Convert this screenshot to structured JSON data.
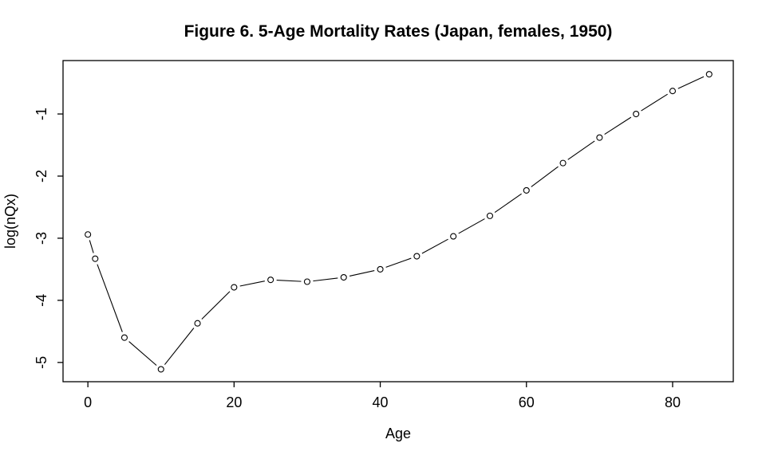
{
  "figure": {
    "title": "Figure 6. 5-Age Mortality Rates (Japan, females, 1950)",
    "xlabel": "Age",
    "ylabel": "log(nQx)"
  },
  "chart_data": {
    "type": "line",
    "title": "Figure 6. 5-Age Mortality Rates (Japan, females, 1950)",
    "xlabel": "Age",
    "ylabel": "log(nQx)",
    "marker": "open-circle",
    "line_style": "segments-with-gaps (R type='b')",
    "grid": false,
    "legend": null,
    "background_color": "#ffffff",
    "stroke_color": "#000000",
    "x": [
      0,
      1,
      5,
      10,
      15,
      20,
      25,
      30,
      35,
      40,
      45,
      50,
      55,
      60,
      65,
      70,
      75,
      80,
      85
    ],
    "y": [
      -2.94,
      -3.33,
      -4.6,
      -5.11,
      -4.37,
      -3.79,
      -3.67,
      -3.7,
      -3.63,
      -3.5,
      -3.29,
      -2.97,
      -2.64,
      -2.23,
      -1.79,
      -1.38,
      -1.0,
      -0.63,
      -0.36
    ],
    "xticks": [
      0,
      20,
      40,
      60,
      80
    ],
    "xtick_labels": [
      "0",
      "20",
      "40",
      "60",
      "80"
    ],
    "yticks": [
      -1,
      -2,
      -3,
      -4,
      -5
    ],
    "ytick_labels": [
      "-1",
      "-2",
      "-3",
      "-4",
      "-5"
    ],
    "xlim": [
      -3.4,
      88.3
    ],
    "ylim": [
      -5.31,
      -0.14
    ]
  }
}
